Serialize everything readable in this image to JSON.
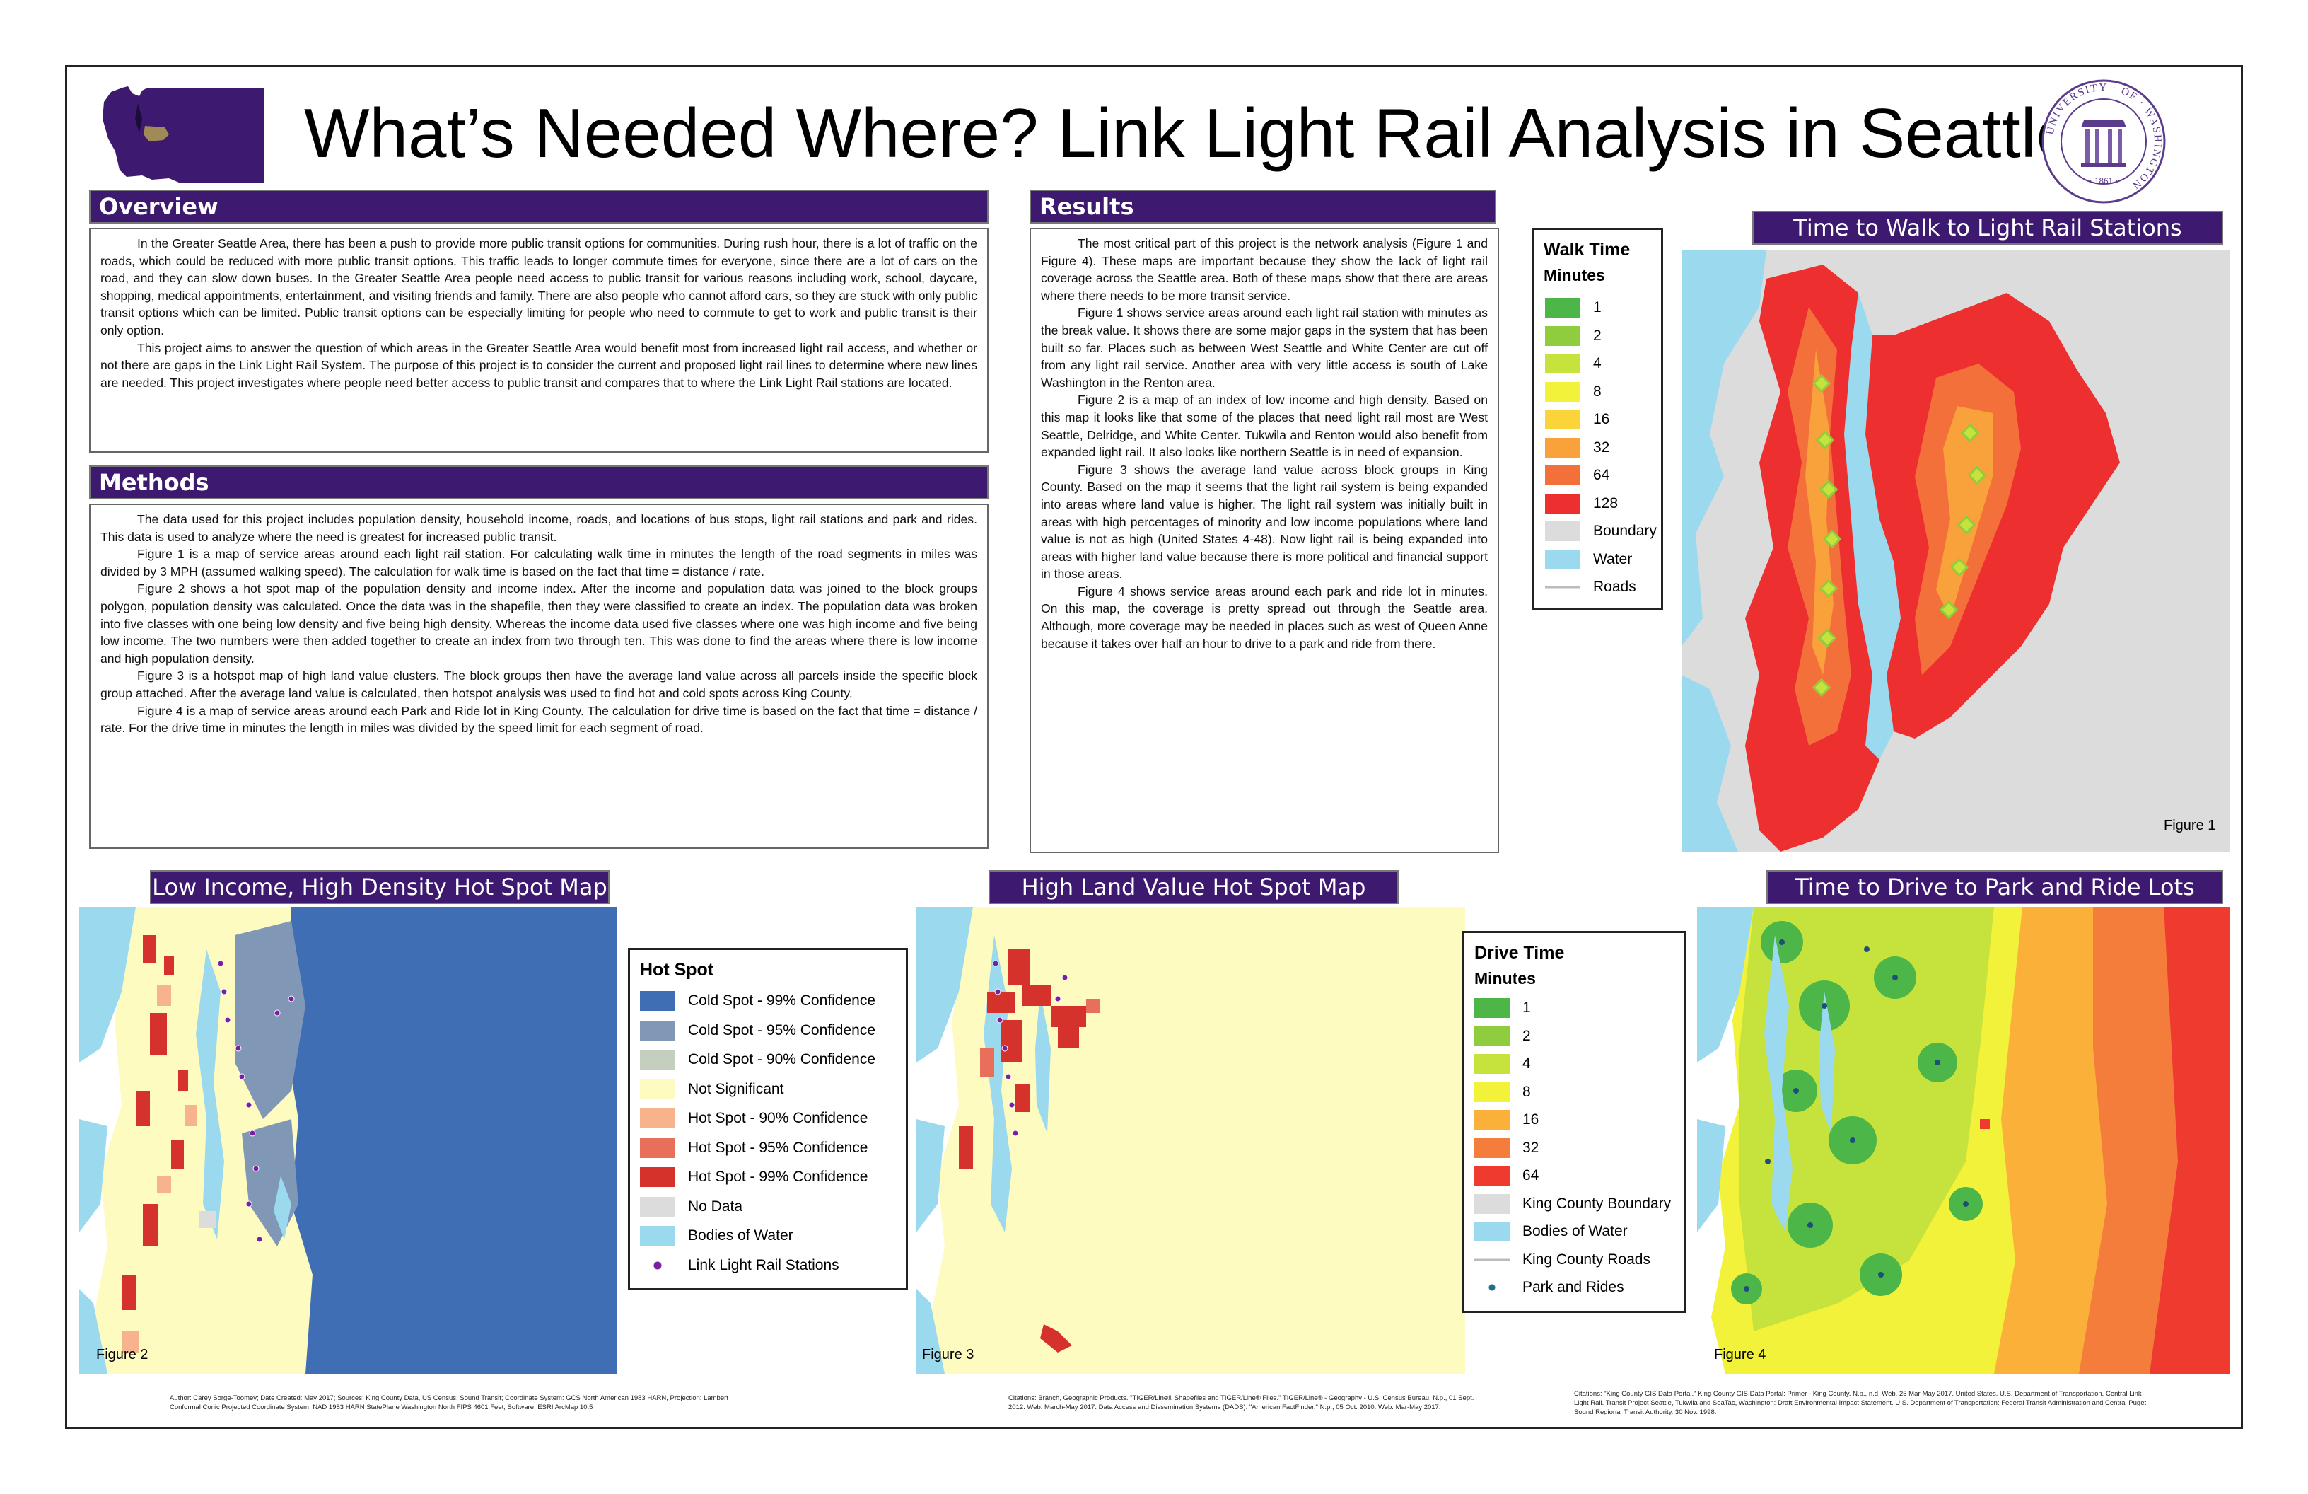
{
  "title": "What’s Needed Where? Link Light Rail Analysis in Seattle",
  "colors": {
    "purple": "#3d1a70",
    "water": "#9bd9ef"
  },
  "sections": {
    "overview": {
      "heading": "Overview",
      "paragraphs": [
        "In the Greater Seattle Area, there has been a push to provide more public transit options for communities. During rush hour, there is a lot of traffic on the roads, which could be reduced with more public transit options. This traffic leads to longer commute times for everyone, since there are a lot of cars on the road, and they can slow down buses. In the Greater Seattle Area people need access to public transit for various reasons including work, school, daycare, shopping, medical appointments, entertainment, and visiting friends and family. There are also people who cannot afford cars, so they are stuck with only public transit options which can be limited. Public transit options can be especially limiting for people who need to commute to get to work and public transit is their only option.",
        "This project aims to answer the question of which areas in the Greater Seattle Area would benefit most from increased light rail access, and whether or not there are gaps in the Link Light Rail System. The purpose of this project is to consider the current and proposed light rail lines to determine where new lines are needed. This project investigates where people need better access to public transit and compares that to where the Link Light Rail stations are located."
      ]
    },
    "methods": {
      "heading": "Methods",
      "paragraphs": [
        "The data used for this project includes population density, household income, roads, and locations of bus stops, light rail stations and park and rides. This data is used to analyze where the need is greatest for increased public transit.",
        "Figure 1 is a map of service areas around each light rail station. For calculating walk time in minutes the length of the road segments in miles was divided by 3 MPH (assumed walking speed). The calculation for walk time is based on the fact that time = distance / rate.",
        "Figure 2 shows a hot spot map of the population density and income index. After the income and population data was joined to the block groups polygon, population density was calculated. Once the data was in the shapefile, then they were classified to create an index. The population data was broken into five classes with one being low density and five being high density. Whereas the income data used five classes where one was high income and five being low income. The two numbers were then added together to create an index from two through ten. This was done to find the areas where there is low income and high population density.",
        "Figure 3 is a hotspot map of high land value clusters. The block groups then have the average land value across all parcels inside the specific block group attached. After the average land value is calculated, then hotspot analysis was used to find hot and cold spots across King County.",
        "Figure 4 is a map of service areas around each Park and Ride lot in King County. The calculation for drive time is based on the fact that time = distance / rate. For the drive time in minutes the length in miles was divided by the speed limit for each segment of road."
      ]
    },
    "results": {
      "heading": "Results",
      "paragraphs": [
        "The most critical part of this project is the network analysis (Figure 1 and Figure 4). These maps are important because they show the lack of light rail coverage across the Seattle area. Both of these maps show that there are areas where there needs to be more transit service.",
        "Figure 1 shows service areas around each light rail station with minutes as the break value. It shows there are some major gaps in the system that has been built so far. Places such as between West Seattle and White Center are cut off from any light rail service. Another area with very little access is south of Lake Washington in the Renton area.",
        "Figure 2 is a map of an index of low income and high density. Based on this map it looks like that some of the places that need light rail most are West Seattle, Delridge, and White Center. Tukwila and Renton would also benefit from expanded light rail. It also looks like northern Seattle is in need of expansion.",
        "Figure 3 shows the average land value across block groups in King County. Based on the map it seems that the light rail system is being expanded into areas where land value is higher. The light rail system was initially built in areas with high percentages of minority and low income populations where land value is not as high (United States 4-48). Now light rail is being expanded into areas with higher land value because there is more political and financial support in those areas.",
        "Figure 4 shows service areas around each park and ride lot in minutes. On this map, the coverage is pretty spread out through the Seattle area. Although, more coverage may be needed in places such as west of Queen Anne because it takes over half an hour to drive to a park and ride from there."
      ]
    }
  },
  "maps": {
    "walk": {
      "heading": "Time to Walk to Light Rail Stations",
      "figure": "Figure 1",
      "legend_title": "Walk Time",
      "legend_subtitle": "Minutes",
      "items": [
        {
          "label": "1",
          "color": "#4cb648"
        },
        {
          "label": "2",
          "color": "#8fcd3e"
        },
        {
          "label": "4",
          "color": "#c6e23c"
        },
        {
          "label": "8",
          "color": "#f2f23a"
        },
        {
          "label": "16",
          "color": "#fbd43a"
        },
        {
          "label": "32",
          "color": "#f9a13a"
        },
        {
          "label": "64",
          "color": "#f4703b"
        },
        {
          "label": "128",
          "color": "#ee2f2f"
        },
        {
          "label": "Boundary",
          "color": "#dcdcdc"
        },
        {
          "label": "Water",
          "color": "#9bd9ef"
        },
        {
          "label": "Roads",
          "color": "line"
        }
      ]
    },
    "hotspot": {
      "heading": "Low Income, High Density Hot Spot Map",
      "figure": "Figure 2",
      "legend_title": "Hot Spot",
      "items": [
        {
          "label": "Cold Spot - 99% Confidence",
          "color": "#3f6eb5"
        },
        {
          "label": "Cold Spot - 95% Confidence",
          "color": "#8097b5"
        },
        {
          "label": "Cold Spot - 90% Confidence",
          "color": "#c4cfc0"
        },
        {
          "label": "Not Significant",
          "color": "#fdfbc0"
        },
        {
          "label": "Hot Spot - 90% Confidence",
          "color": "#f6b38c"
        },
        {
          "label": "Hot Spot - 95% Confidence",
          "color": "#e8705a"
        },
        {
          "label": "Hot Spot - 99% Confidence",
          "color": "#d6322c"
        },
        {
          "label": "No Data",
          "color": "#dcdcdc"
        },
        {
          "label": "Bodies of Water",
          "color": "#9bd9ef"
        },
        {
          "label": "Link Light Rail Stations",
          "color": "dot-purple"
        }
      ],
      "credit": "Author: Carey Sorge-Toomey; Date Created: May 2017; Sources: King County Data, US Census, Sound Transit; Coordinate System: GCS North American 1983 HARN, Projection: Lambert Conformal Conic Projected Coordinate System: NAD 1983 HARN StatePlane Washington North FIPS 4601 Feet; Software: ESRI ArcMap 10.5"
    },
    "landvalue": {
      "heading": "High Land Value Hot Spot Map",
      "figure": "Figure 3",
      "credit": "Citations: Branch, Geographic Products. \"TIGER/Line® Shapefiles and TIGER/Line® Files.\" TIGER/Line® - Geography - U.S. Census Bureau. N.p., 01 Sept. 2012. Web. March-May 2017. Data Access and Dissemination Systems (DADS). \"American FactFinder.\" N.p., 05 Oct. 2010. Web. Mar-May 2017."
    },
    "drive": {
      "heading": "Time to Drive to Park and Ride Lots",
      "figure": "Figure 4",
      "legend_title": "Drive Time",
      "legend_subtitle": "Minutes",
      "items": [
        {
          "label": "1",
          "color": "#4cb648"
        },
        {
          "label": "2",
          "color": "#8fcd3e"
        },
        {
          "label": "4",
          "color": "#c6e23c"
        },
        {
          "label": "8",
          "color": "#f2f23a"
        },
        {
          "label": "16",
          "color": "#fbb03a"
        },
        {
          "label": "32",
          "color": "#f47d3b"
        },
        {
          "label": "64",
          "color": "#ee3a2f"
        },
        {
          "label": "King County Boundary",
          "color": "#dcdcdc"
        },
        {
          "label": "Bodies of Water",
          "color": "#9bd9ef"
        },
        {
          "label": "King County Roads",
          "color": "line"
        },
        {
          "label": "Park and Rides",
          "color": "dot-teal"
        }
      ],
      "credit": "Citations: \"King County GIS Data Portal.\" King County GIS Data Portal: Primer - King County. N.p., n.d. Web. 25 Mar-May 2017. United States. U.S. Department of Transportation. Central Link Light Rail. Transit Project Seattle, Tukwila and SeaTac, Washington: Draft Environmental Impact Statement. U.S. Department of Transportation: Federal Transit Administration and Central Puget Sound Regional Transit Authority. 30 Nov. 1998."
    }
  },
  "seal": {
    "ring_text": "UNIVERSITY · OF · WASHINGTON",
    "year": "· 1861 ·"
  }
}
